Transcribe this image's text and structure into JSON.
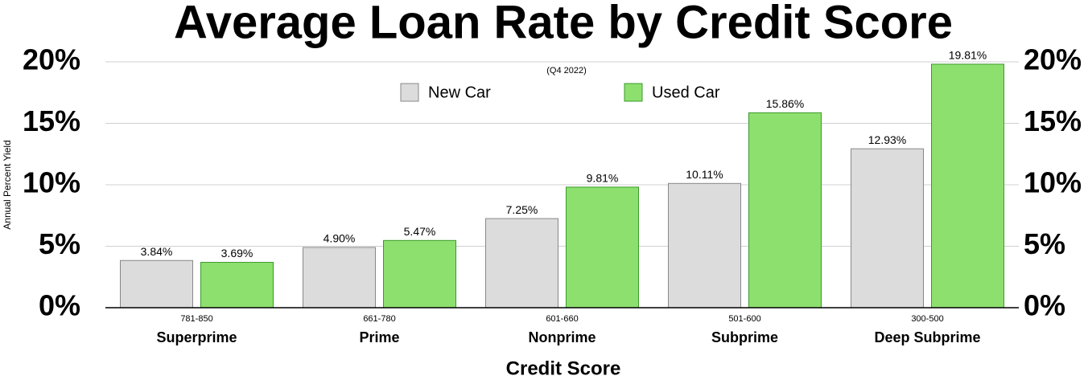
{
  "chart_data": {
    "type": "bar",
    "title": "Average Loan Rate by Credit Score",
    "subtitle": "(Q4 2022)",
    "xlabel": "Credit Score",
    "ylabel": "Annual Percent Yield",
    "categories": [
      "Superprime",
      "Prime",
      "Nonprime",
      "Subprime",
      "Deep Subprime"
    ],
    "category_ranges": [
      "781-850",
      "661-780",
      "601-660",
      "501-600",
      "300-500"
    ],
    "series": [
      {
        "name": "New Car",
        "color": "#dcdcdc",
        "values": [
          3.84,
          4.9,
          7.25,
          10.11,
          12.93
        ],
        "value_labels": [
          "3.84%",
          "4.90%",
          "7.25%",
          "10.11%",
          "12.93%"
        ]
      },
      {
        "name": "Used Car",
        "color": "#8ee06e",
        "values": [
          3.69,
          5.47,
          9.81,
          15.86,
          19.81
        ],
        "value_labels": [
          "3.69%",
          "5.47%",
          "9.81%",
          "15.86%",
          "19.81%"
        ]
      }
    ],
    "ylim": [
      0,
      20
    ],
    "yticks": [
      {
        "value": 0,
        "label": "0%"
      },
      {
        "value": 5,
        "label": "5%"
      },
      {
        "value": 10,
        "label": "10%"
      },
      {
        "value": 15,
        "label": "15%"
      },
      {
        "value": 20,
        "label": "20%"
      }
    ],
    "y2lim": [
      0,
      20
    ],
    "y2ticks": [
      {
        "value": 0,
        "label": "0%"
      },
      {
        "value": 5,
        "label": "5%"
      },
      {
        "value": 10,
        "label": "10%"
      },
      {
        "value": 15,
        "label": "15%"
      },
      {
        "value": 20,
        "label": "20%"
      }
    ],
    "grid": true
  }
}
